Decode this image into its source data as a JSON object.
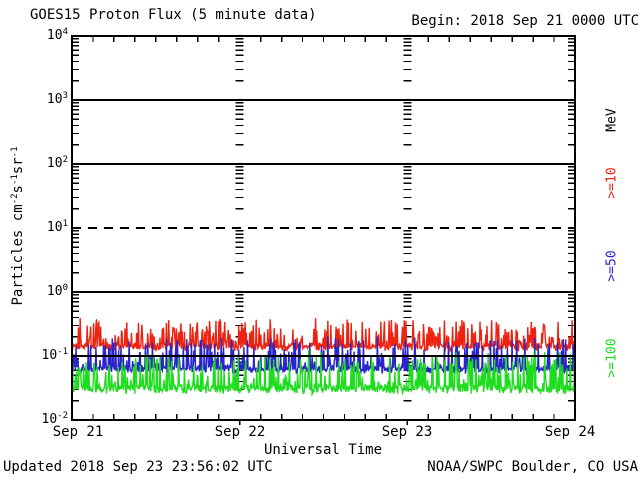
{
  "chart_data": {
    "type": "line",
    "title": "GOES15 Proton Flux (5 minute data)",
    "begin_label": "Begin: 2018 Sep 21 0000 UTC",
    "xlabel": "Universal Time",
    "ylabel": "Particles cm⁻²s⁻¹sr⁻¹",
    "ylabel_parts": [
      {
        "t": "Particles cm"
      },
      {
        "t": "-2",
        "sup": true
      },
      {
        "t": "s"
      },
      {
        "t": "-1",
        "sup": true
      },
      {
        "t": "sr"
      },
      {
        "t": "-1",
        "sup": true
      }
    ],
    "unit_label": "MeV",
    "x_range": {
      "start": "2018 Sep 21 0000 UTC",
      "end": "2018 Sep 24 0000 UTC",
      "days": 3
    },
    "xticks": [
      "Sep 21",
      "Sep 22",
      "Sep 23",
      "Sep 24"
    ],
    "yticks": [
      {
        "base": "10",
        "exp": "4"
      },
      {
        "base": "10",
        "exp": "3"
      },
      {
        "base": "10",
        "exp": "2"
      },
      {
        "base": "10",
        "exp": "1"
      },
      {
        "base": "10",
        "exp": "0"
      },
      {
        "base": "10",
        "exp": "-1"
      },
      {
        "base": "10",
        "exp": "-2"
      }
    ],
    "y_log_range": [
      -2,
      4
    ],
    "grid": {
      "solid_decade_exponents": [
        3,
        2,
        0,
        -1
      ],
      "dashed_decade_exponents": [
        1
      ],
      "minor_x_ticks_per_day": 8,
      "interior_day_tick_columns": [
        "Sep 22",
        "Sep 23"
      ]
    },
    "axis_color": "#000000",
    "series": [
      {
        "name": "gte10",
        "label": ">=10",
        "color": "#ee2211",
        "cadence_minutes": 5,
        "points": 864,
        "seed": 20180921,
        "baseline_flux": 0.14,
        "noise_decades": 0.075,
        "spike_probability": 0.3,
        "spike_decades": 0.42,
        "min_flux": 0.095,
        "max_flux": 0.5,
        "summary": "noisy band ~0.1-0.4 pfu, median ~0.15"
      },
      {
        "name": "gte50",
        "label": ">=50",
        "color": "#2a24cd",
        "cadence_minutes": 5,
        "points": 864,
        "seed": 20180950,
        "baseline_flux": 0.062,
        "noise_decades": 0.07,
        "spike_probability": 0.28,
        "spike_decades": 0.5,
        "min_flux": 0.048,
        "max_flux": 0.26,
        "summary": "noisy band ~0.05-0.2 pfu, median ~0.07"
      },
      {
        "name": "gte100",
        "label": ">=100",
        "color": "#1edc1e",
        "cadence_minutes": 5,
        "points": 864,
        "seed": 20180100,
        "baseline_flux": 0.031,
        "noise_decades": 0.09,
        "spike_probability": 0.3,
        "spike_decades": 0.55,
        "min_flux": 0.022,
        "max_flux": 0.15,
        "summary": "noisy band ~0.025-0.12 pfu, median ~0.035"
      }
    ],
    "footer_left": "Updated 2018 Sep 23 23:56:02 UTC",
    "footer_right": "NOAA/SWPC Boulder, CO USA"
  }
}
